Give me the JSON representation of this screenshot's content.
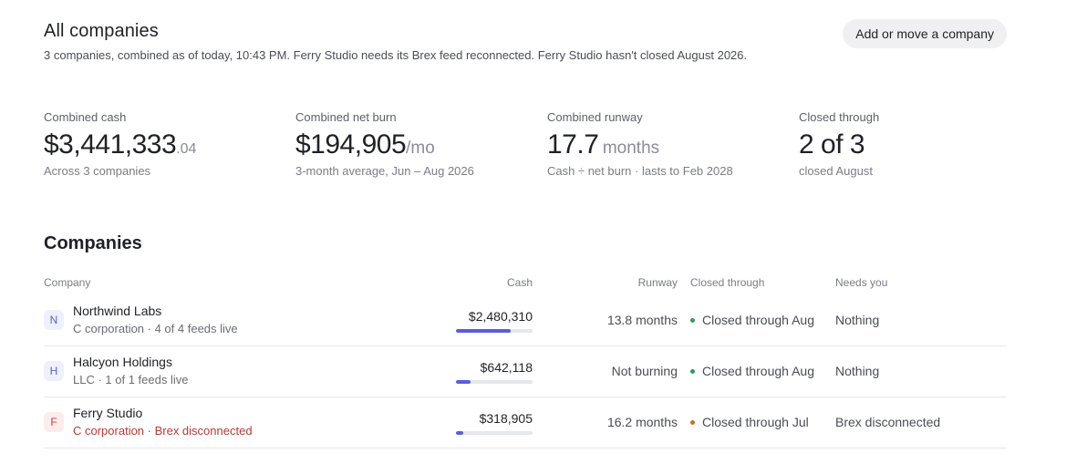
{
  "header": {
    "title": "All companies",
    "subtitle": "3 companies, combined as of today, 10:43 PM. Ferry Studio needs its Brex feed reconnected. Ferry Studio hasn't closed August 2026.",
    "add_button_label": "Add or move a company"
  },
  "stats": {
    "cash": {
      "label": "Combined cash",
      "value": "$3,441,333",
      "cents": ".04",
      "sub": "Across 3 companies"
    },
    "burn": {
      "label": "Combined net burn",
      "value": "$194,905",
      "suffix": "/mo",
      "sub": "3-month average, Jun – Aug 2026"
    },
    "runway": {
      "label": "Combined runway",
      "value": "17.7",
      "suffix": "months",
      "sub": "Cash ÷ net burn · lasts to Feb 2028"
    },
    "closed": {
      "label": "Closed through",
      "value": "2 of 3",
      "sub": "closed August"
    }
  },
  "companies": {
    "title": "Companies",
    "columns": {
      "company": "Company",
      "cash": "Cash",
      "runway": "Runway",
      "closed": "Closed through",
      "needs": "Needs you"
    },
    "rows": [
      {
        "initial": "N",
        "name": "Northwind Labs",
        "meta": "C corporation · 4 of 4 feeds live",
        "cash": "$2,480,310",
        "cash_share": 0.72,
        "runway": "13.8 months",
        "closed": "Closed through Aug",
        "status_color": "#2e9a63",
        "needs": "Nothing"
      },
      {
        "initial": "H",
        "name": "Halcyon Holdings",
        "meta": "LLC · 1 of 1 feeds live",
        "cash": "$642,118",
        "cash_share": 0.19,
        "runway": "Not burning",
        "closed": "Closed through Aug",
        "status_color": "#2e9a63",
        "needs": "Nothing"
      },
      {
        "initial": "F",
        "name": "Ferry Studio",
        "meta": "C corporation · Brex disconnected",
        "cash": "$318,905",
        "cash_share": 0.09,
        "runway": "16.2 months",
        "closed": "Closed through Jul",
        "status_color": "#c7741f",
        "needs": "Brex disconnected"
      }
    ]
  },
  "icons": {
    "avatar": "company-initial-icon",
    "status": "status-dot-icon"
  },
  "colors": {
    "accent": "#5a5fd8",
    "ok": "#2e9a63",
    "warn": "#c7741f",
    "error_text": "#b53a33"
  }
}
